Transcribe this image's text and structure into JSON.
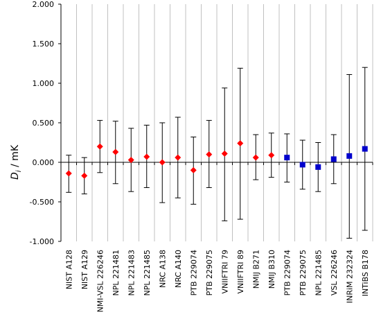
{
  "chart_data": {
    "type": "scatter",
    "ylabel_main": "D",
    "ylabel_sub": "i",
    "ylabel_unit": " / mK",
    "ylim": [
      -1.0,
      2.0
    ],
    "yticks": [
      2.0,
      1.5,
      1.0,
      0.5,
      0.0,
      -0.5,
      -1.0
    ],
    "ytick_labels": [
      "2.000",
      "1.500",
      "1.000",
      "0.500",
      "0.000",
      "-0.500",
      "-1.000"
    ],
    "grid": "vertical",
    "categories": [
      "NIST A128",
      "NIST A129",
      "NMI-VSL 226246",
      "NPL 221481",
      "NPL 221483",
      "NPL 221485",
      "NRC A138",
      "NRC A140",
      "PTB 229074",
      "PTB 229075",
      "VNIIFTRI 79",
      "VNIIFTRI 89",
      "NMIJ B271",
      "NMIJ B310",
      "PTB 229074",
      "PTB 229075",
      "NPL 221485",
      "VSL 226246",
      "INRiM 232324",
      "INTiBS B178"
    ],
    "series": [
      {
        "marker": "diamond",
        "color": "#ff0000",
        "points": [
          {
            "i": 0,
            "y": -0.14,
            "low": -0.38,
            "high": 0.09
          },
          {
            "i": 1,
            "y": -0.17,
            "low": -0.4,
            "high": 0.06
          },
          {
            "i": 2,
            "y": 0.2,
            "low": -0.13,
            "high": 0.53
          },
          {
            "i": 3,
            "y": 0.13,
            "low": -0.27,
            "high": 0.52
          },
          {
            "i": 4,
            "y": 0.03,
            "low": -0.37,
            "high": 0.43
          },
          {
            "i": 5,
            "y": 0.07,
            "low": -0.32,
            "high": 0.47
          },
          {
            "i": 6,
            "y": 0.0,
            "low": -0.51,
            "high": 0.5
          },
          {
            "i": 7,
            "y": 0.06,
            "low": -0.45,
            "high": 0.57
          },
          {
            "i": 8,
            "y": -0.1,
            "low": -0.53,
            "high": 0.32
          },
          {
            "i": 9,
            "y": 0.1,
            "low": -0.32,
            "high": 0.53
          },
          {
            "i": 10,
            "y": 0.11,
            "low": -0.74,
            "high": 0.94
          },
          {
            "i": 11,
            "y": 0.24,
            "low": -0.72,
            "high": 1.19
          },
          {
            "i": 12,
            "y": 0.06,
            "low": -0.22,
            "high": 0.35
          },
          {
            "i": 13,
            "y": 0.09,
            "low": -0.19,
            "high": 0.37
          }
        ]
      },
      {
        "marker": "square",
        "color": "#0000cc",
        "points": [
          {
            "i": 14,
            "y": 0.06,
            "low": -0.25,
            "high": 0.36
          },
          {
            "i": 15,
            "y": -0.03,
            "low": -0.34,
            "high": 0.28
          },
          {
            "i": 16,
            "y": -0.06,
            "low": -0.37,
            "high": 0.25
          },
          {
            "i": 17,
            "y": 0.04,
            "low": -0.27,
            "high": 0.35
          },
          {
            "i": 18,
            "y": 0.08,
            "low": -0.96,
            "high": 1.11
          },
          {
            "i": 19,
            "y": 0.17,
            "low": -0.86,
            "high": 1.2
          }
        ]
      }
    ]
  }
}
